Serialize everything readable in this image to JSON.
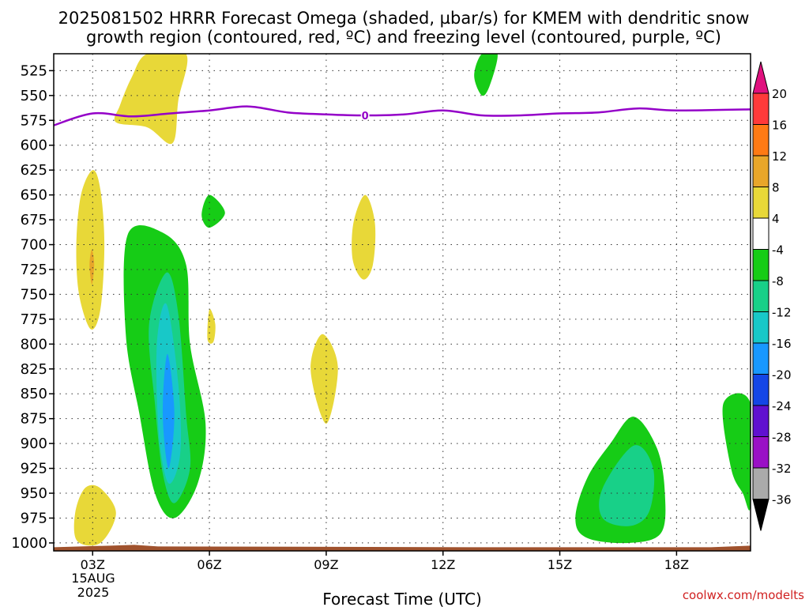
{
  "title_line1": "2025081502 HRRR Forecast Omega (shaded, µbar/s) for KMEM with dendritic snow",
  "title_line2": "growth region (contoured, red, ºC) and freezing level (contoured, purple, ºC)",
  "watermark": "coolwx.com/modelts",
  "chart_data": {
    "type": "heatmap",
    "xlabel": "Forecast Time (UTC)",
    "x_ticks": [
      {
        "label": "03Z",
        "hour": 3
      },
      {
        "label": "06Z",
        "hour": 6
      },
      {
        "label": "09Z",
        "hour": 9
      },
      {
        "label": "12Z",
        "hour": 12
      },
      {
        "label": "15Z",
        "hour": 15
      },
      {
        "label": "18Z",
        "hour": 18
      }
    ],
    "date_label": [
      "15AUG",
      "2025"
    ],
    "xlim": [
      2,
      19.9
    ],
    "y_ticks": [
      525,
      550,
      575,
      600,
      625,
      650,
      675,
      700,
      725,
      750,
      775,
      800,
      825,
      850,
      875,
      900,
      925,
      950,
      975,
      1000
    ],
    "ylim": [
      508,
      1008
    ],
    "grid": true,
    "colorbar": {
      "labels": [
        "20",
        "16",
        "12",
        "8",
        "4",
        "-4",
        "-8",
        "-12",
        "-16",
        "-20",
        "-24",
        "-28",
        "-32",
        "-36"
      ],
      "colors": [
        "#ff3a3a",
        "#ff7a14",
        "#e8a62a",
        "#e8d838",
        "#ffffff",
        "#16cc16",
        "#18d088",
        "#18c8c8",
        "#1898ff",
        "#1446e6",
        "#6010d0",
        "#9a10c6",
        "#aaaaaa"
      ],
      "top_arrow_color": "#e0107e",
      "bottom_arrow_color": "#000000"
    },
    "freezing_level": {
      "color": "#9400c8",
      "label": "0",
      "points": [
        [
          2,
          580
        ],
        [
          3,
          568
        ],
        [
          4,
          571
        ],
        [
          5,
          568
        ],
        [
          6,
          565
        ],
        [
          7,
          561
        ],
        [
          8,
          567
        ],
        [
          9,
          569
        ],
        [
          10,
          570
        ],
        [
          11,
          569
        ],
        [
          12,
          565
        ],
        [
          13,
          570
        ],
        [
          14,
          570
        ],
        [
          15,
          568
        ],
        [
          16,
          567
        ],
        [
          17,
          563
        ],
        [
          18,
          565
        ],
        [
          19.9,
          564
        ]
      ]
    },
    "omega_regions": [
      {
        "level": "4 to 8",
        "color": "#e8d838",
        "outline": [
          [
            4.4,
            508
          ],
          [
            5.4,
            508
          ],
          [
            5.2,
            555
          ],
          [
            5.05,
            598
          ],
          [
            4.4,
            582
          ],
          [
            3.6,
            577
          ],
          [
            3.7,
            560
          ],
          [
            4.0,
            532
          ]
        ]
      },
      {
        "level": "4 to 8",
        "color": "#e8d838",
        "outline": [
          [
            3.0,
            625
          ],
          [
            3.2,
            645
          ],
          [
            3.3,
            700
          ],
          [
            3.2,
            765
          ],
          [
            2.95,
            785
          ],
          [
            2.65,
            750
          ],
          [
            2.58,
            700
          ],
          [
            2.7,
            650
          ]
        ]
      },
      {
        "level": "8 to 12",
        "color": "#e8a62a",
        "outline": [
          [
            2.98,
            705
          ],
          [
            3.04,
            720
          ],
          [
            2.98,
            740
          ],
          [
            2.92,
            720
          ]
        ]
      },
      {
        "level": "4 to 8",
        "color": "#e8d838",
        "outline": [
          [
            2.55,
            970
          ],
          [
            2.8,
            945
          ],
          [
            3.2,
            945
          ],
          [
            3.6,
            970
          ],
          [
            3.2,
            1000
          ],
          [
            2.6,
            998
          ]
        ]
      },
      {
        "level": "4 to 8",
        "color": "#e8d838",
        "outline": [
          [
            6.0,
            765
          ],
          [
            6.15,
            780
          ],
          [
            6.1,
            798
          ],
          [
            5.95,
            795
          ]
        ]
      },
      {
        "level": "4 to 8",
        "color": "#e8d838",
        "outline": [
          [
            10.0,
            650
          ],
          [
            10.25,
            678
          ],
          [
            10.2,
            720
          ],
          [
            9.95,
            735
          ],
          [
            9.68,
            715
          ],
          [
            9.7,
            678
          ]
        ]
      },
      {
        "level": "4 to 8",
        "color": "#e8d838",
        "outline": [
          [
            8.9,
            790
          ],
          [
            9.3,
            823
          ],
          [
            9.0,
            880
          ],
          [
            8.6,
            826
          ]
        ]
      },
      {
        "level": "-4 to -8",
        "color": "#16cc16",
        "outline": [
          [
            6.0,
            650
          ],
          [
            6.4,
            668
          ],
          [
            6.0,
            683
          ],
          [
            5.8,
            670
          ]
        ]
      },
      {
        "level": "-4 to -8",
        "color": "#16cc16",
        "outline": [
          [
            13.0,
            508
          ],
          [
            13.4,
            508
          ],
          [
            13.2,
            540
          ],
          [
            13.0,
            550
          ],
          [
            12.8,
            530
          ]
        ]
      },
      {
        "level": "-4 to -8",
        "color": "#16cc16",
        "outline": [
          [
            3.9,
            690
          ],
          [
            4.8,
            688
          ],
          [
            5.4,
            720
          ],
          [
            5.5,
            800
          ],
          [
            5.9,
            880
          ],
          [
            5.7,
            940
          ],
          [
            5.1,
            975
          ],
          [
            4.6,
            950
          ],
          [
            4.2,
            870
          ],
          [
            3.85,
            790
          ]
        ]
      },
      {
        "level": "-8 to -12",
        "color": "#18d088",
        "outline": [
          [
            4.9,
            728
          ],
          [
            5.2,
            770
          ],
          [
            5.4,
            870
          ],
          [
            5.5,
            925
          ],
          [
            5.1,
            960
          ],
          [
            4.8,
            930
          ],
          [
            4.6,
            860
          ],
          [
            4.45,
            780
          ]
        ]
      },
      {
        "level": "-12 to -16",
        "color": "#18c8c8",
        "outline": [
          [
            4.9,
            760
          ],
          [
            5.2,
            840
          ],
          [
            5.25,
            910
          ],
          [
            4.95,
            940
          ],
          [
            4.7,
            890
          ],
          [
            4.65,
            800
          ]
        ]
      },
      {
        "level": "-16 to -20",
        "color": "#1898ff",
        "outline": [
          [
            4.92,
            810
          ],
          [
            5.1,
            870
          ],
          [
            4.95,
            925
          ],
          [
            4.8,
            870
          ]
        ]
      },
      {
        "level": "-4 to -8",
        "color": "#16cc16",
        "outline": [
          [
            15.4,
            975
          ],
          [
            15.7,
            935
          ],
          [
            16.3,
            900
          ],
          [
            16.9,
            873
          ],
          [
            17.5,
            905
          ],
          [
            17.7,
            950
          ],
          [
            17.6,
            990
          ],
          [
            16.8,
            1000
          ],
          [
            15.7,
            995
          ]
        ]
      },
      {
        "level": "-8 to -12",
        "color": "#18d088",
        "outline": [
          [
            16.1,
            945
          ],
          [
            16.9,
            902
          ],
          [
            17.4,
            925
          ],
          [
            17.3,
            968
          ],
          [
            16.8,
            983
          ],
          [
            16.1,
            975
          ]
        ]
      },
      {
        "level": "-4 to -8",
        "color": "#16cc16",
        "outline": [
          [
            19.2,
            860
          ],
          [
            19.9,
            860
          ],
          [
            19.9,
            962
          ],
          [
            19.7,
            950
          ],
          [
            19.4,
            925
          ]
        ]
      }
    ],
    "ground_color": "#a0522d"
  }
}
